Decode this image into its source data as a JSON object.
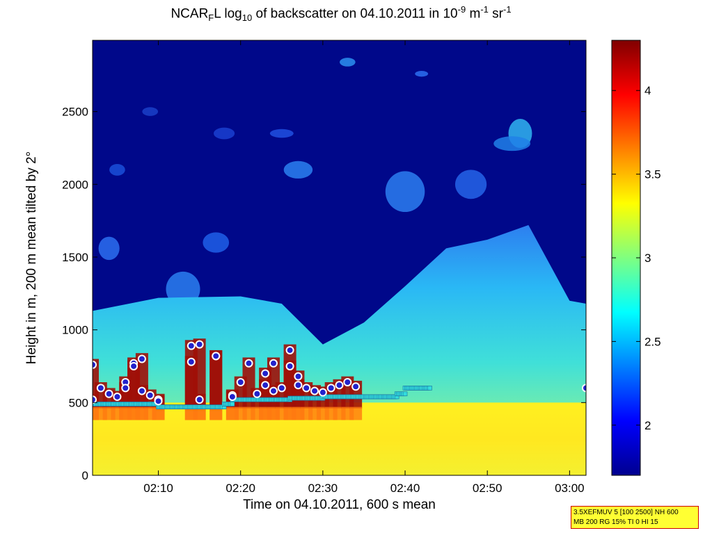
{
  "title": {
    "prefix": "NCAR",
    "sub1": "F",
    "mid1": "L log",
    "sub2": "10",
    "mid2": " of backscatter on 04.10.2011 in 10",
    "sup1": "-9",
    "mid3": " m",
    "sup2": "-1",
    "mid4": " sr",
    "sup3": "-1"
  },
  "ylabel": "Height in m, 200 m mean tilted by 2°",
  "xlabel": "Time on 04.10.2011, 600 s mean",
  "param_box": {
    "line1": "3.5XEFMUV 5 [100 2500] NH 600",
    "line2": "MB 200 RG 15% TI 0 HI 15"
  },
  "colors": {
    "background_blue": "#00088a",
    "cyan": "#33ddee",
    "marker_fill": "#2222cc",
    "marker_edge": "#ffffff",
    "step_marker": "#33dddd"
  },
  "chart_data": {
    "type": "heatmap",
    "xlim": [
      "02:02",
      "03:02"
    ],
    "ylim": [
      0,
      2990
    ],
    "x_ticks": [
      "02:10",
      "02:20",
      "02:30",
      "02:40",
      "02:50",
      "03:00"
    ],
    "y_ticks": [
      0,
      500,
      1000,
      1500,
      2000,
      2500
    ],
    "colorbar": {
      "range": [
        1.7,
        4.3
      ],
      "ticks": [
        "2",
        "2.5",
        "3",
        "3.5",
        "4"
      ],
      "colormap": "jet"
    },
    "layers": {
      "surface_yellow_top_m": 500,
      "aerosol_layer_top_m": [
        {
          "time": "02:02",
          "height": 1130
        },
        {
          "time": "02:10",
          "height": 1220
        },
        {
          "time": "02:20",
          "height": 1230
        },
        {
          "time": "02:25",
          "height": 1180
        },
        {
          "time": "02:30",
          "height": 900
        },
        {
          "time": "02:35",
          "height": 1050
        },
        {
          "time": "02:40",
          "height": 1300
        },
        {
          "time": "02:45",
          "height": 1560
        },
        {
          "time": "02:50",
          "height": 1620
        },
        {
          "time": "02:55",
          "height": 1720
        },
        {
          "time": "03:00",
          "height": 1200
        },
        {
          "time": "03:02",
          "height": 1180
        }
      ]
    },
    "cloud_base_markers": [
      {
        "time": "02:02",
        "height": 760
      },
      {
        "time": "02:02",
        "height": 520
      },
      {
        "time": "02:03",
        "height": 600
      },
      {
        "time": "02:04",
        "height": 560
      },
      {
        "time": "02:05",
        "height": 540
      },
      {
        "time": "02:06",
        "height": 640
      },
      {
        "time": "02:06",
        "height": 600
      },
      {
        "time": "02:07",
        "height": 770
      },
      {
        "time": "02:07",
        "height": 750
      },
      {
        "time": "02:08",
        "height": 800
      },
      {
        "time": "02:08",
        "height": 580
      },
      {
        "time": "02:09",
        "height": 550
      },
      {
        "time": "02:10",
        "height": 520
      },
      {
        "time": "02:10",
        "height": 510
      },
      {
        "time": "02:14",
        "height": 890
      },
      {
        "time": "02:14",
        "height": 780
      },
      {
        "time": "02:15",
        "height": 900
      },
      {
        "time": "02:15",
        "height": 520
      },
      {
        "time": "02:17",
        "height": 820
      },
      {
        "time": "02:17",
        "height": 820
      },
      {
        "time": "02:19",
        "height": 550
      },
      {
        "time": "02:19",
        "height": 540
      },
      {
        "time": "02:20",
        "height": 640
      },
      {
        "time": "02:21",
        "height": 770
      },
      {
        "time": "02:22",
        "height": 560
      },
      {
        "time": "02:23",
        "height": 700
      },
      {
        "time": "02:23",
        "height": 620
      },
      {
        "time": "02:24",
        "height": 580
      },
      {
        "time": "02:24",
        "height": 770
      },
      {
        "time": "02:25",
        "height": 600
      },
      {
        "time": "02:26",
        "height": 750
      },
      {
        "time": "02:26",
        "height": 860
      },
      {
        "time": "02:27",
        "height": 620
      },
      {
        "time": "02:27",
        "height": 680
      },
      {
        "time": "02:28",
        "height": 600
      },
      {
        "time": "02:29",
        "height": 580
      },
      {
        "time": "02:30",
        "height": 570
      },
      {
        "time": "02:31",
        "height": 600
      },
      {
        "time": "02:32",
        "height": 620
      },
      {
        "time": "02:33",
        "height": 640
      },
      {
        "time": "02:34",
        "height": 610
      },
      {
        "time": "03:02",
        "height": 600
      }
    ],
    "mixing_layer_steps": [
      {
        "from": "02:02",
        "to": "02:10",
        "height": 490
      },
      {
        "from": "02:10",
        "to": "02:18",
        "height": 470
      },
      {
        "from": "02:18",
        "to": "02:19",
        "height": 490
      },
      {
        "from": "02:19",
        "to": "02:26",
        "height": 520
      },
      {
        "from": "02:26",
        "to": "02:30",
        "height": 530
      },
      {
        "from": "02:30",
        "to": "02:39",
        "height": 540
      },
      {
        "from": "02:39",
        "to": "02:40",
        "height": 560
      },
      {
        "from": "02:40",
        "to": "02:43",
        "height": 600
      }
    ]
  }
}
